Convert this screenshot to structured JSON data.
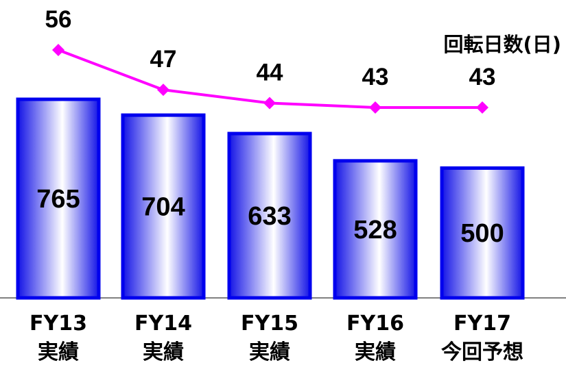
{
  "chart_data": {
    "type": "bar",
    "categories": [
      [
        "FY13",
        "実績"
      ],
      [
        "FY14",
        "実績"
      ],
      [
        "FY15",
        "実績"
      ],
      [
        "FY16",
        "実績"
      ],
      [
        "FY17",
        "今回予想"
      ]
    ],
    "series": [
      {
        "type": "bar",
        "values": [
          765,
          704,
          633,
          528,
          500
        ],
        "color": "#0000ee"
      },
      {
        "type": "line",
        "name": "回転日数(日)",
        "values": [
          56,
          47,
          44,
          43,
          43
        ],
        "color": "#ff00ff"
      }
    ],
    "grid": false,
    "legend": "none"
  }
}
